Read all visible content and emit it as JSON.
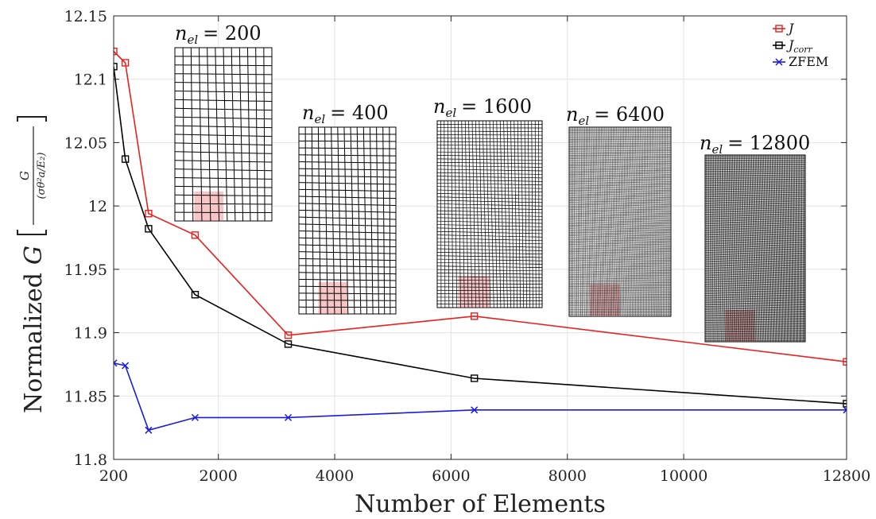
{
  "chart_data": {
    "type": "line",
    "xlabel": "Number of Elements",
    "ylabel": "Normalized",
    "ylabel_symbol": "G",
    "ylabel_fraction": {
      "numerator": "G",
      "denominator": "(σθ²a/E₂)"
    },
    "xlim": [
      200,
      12800
    ],
    "ylim": [
      11.8,
      12.15
    ],
    "xticks": [
      200,
      2000,
      4000,
      6000,
      8000,
      10000,
      12800
    ],
    "xtick_labels": [
      "200",
      "2000",
      "4000",
      "6000",
      "8000",
      "10000",
      "12800"
    ],
    "yticks": [
      11.8,
      11.85,
      11.9,
      11.95,
      12,
      12.05,
      12.1,
      12.15
    ],
    "ytick_labels": [
      "11.8",
      "11.85",
      "11.9",
      "11.95",
      "12",
      "12.05",
      "12.1",
      "12.15"
    ],
    "grid": true,
    "legend_position": "top-right",
    "series": [
      {
        "name": "J",
        "color": "#e8201e",
        "marker": "square",
        "x": [
          200,
          400,
          800,
          1600,
          3200,
          6400,
          12800
        ],
        "y": [
          12.122,
          12.113,
          11.994,
          11.977,
          11.898,
          11.913,
          11.877
        ]
      },
      {
        "name": "J_corr",
        "color": "#000000",
        "marker": "square",
        "x": [
          200,
          400,
          800,
          1600,
          3200,
          6400,
          12800
        ],
        "y": [
          12.11,
          12.037,
          11.982,
          11.93,
          11.891,
          11.864,
          11.844
        ]
      },
      {
        "name": "ZFEM",
        "color": "#1b1bdc",
        "marker": "x",
        "x": [
          200,
          400,
          800,
          1600,
          3200,
          6400,
          12800
        ],
        "y": [
          11.876,
          11.874,
          11.823,
          11.833,
          11.833,
          11.839,
          11.839
        ]
      }
    ],
    "annotations": [
      {
        "id": "mesh200",
        "label_var": "n",
        "label_sub": "el",
        "label_value": "= 200",
        "cols": 12,
        "rows": 20
      },
      {
        "id": "mesh400",
        "label_var": "n",
        "label_sub": "el",
        "label_value": "= 400",
        "cols": 15,
        "rows": 27
      },
      {
        "id": "mesh1600",
        "label_var": "n",
        "label_sub": "el",
        "label_value": "= 1600",
        "cols": 30,
        "rows": 54
      },
      {
        "id": "mesh6400",
        "label_var": "n",
        "label_sub": "el",
        "label_value": "= 6400",
        "cols": 60,
        "rows": 108
      },
      {
        "id": "mesh12800",
        "label_var": "n",
        "label_sub": "el",
        "label_value": "= 12800",
        "cols": 84,
        "rows": 152
      }
    ]
  }
}
